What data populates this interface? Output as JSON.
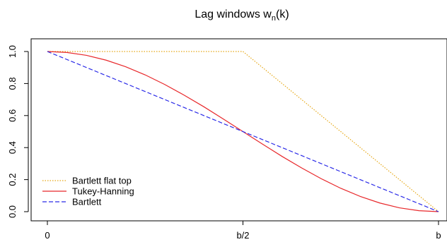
{
  "chart_data": {
    "type": "line",
    "title_main": "Lag windows w",
    "title_sub": "n",
    "title_paren": "(k)",
    "xlabel": "",
    "ylabel": "",
    "xlim": [
      0,
      1
    ],
    "ylim": [
      0,
      1
    ],
    "x_ticks": [
      {
        "value": 0,
        "label": "0"
      },
      {
        "value": 0.5,
        "label": "b/2"
      },
      {
        "value": 1,
        "label": "b"
      }
    ],
    "y_ticks": [
      {
        "value": 0.0,
        "label": "0.0"
      },
      {
        "value": 0.2,
        "label": "0.2"
      },
      {
        "value": 0.4,
        "label": "0.4"
      },
      {
        "value": 0.6,
        "label": "0.6"
      },
      {
        "value": 0.8,
        "label": "0.8"
      },
      {
        "value": 1.0,
        "label": "1.0"
      }
    ],
    "grid": false,
    "legend_position": "bottom-left",
    "series": [
      {
        "name": "Bartlett flat top",
        "color": "#E6A817",
        "dash": "dotted",
        "x": [
          0,
          0.5,
          1
        ],
        "y": [
          1,
          1,
          0
        ]
      },
      {
        "name": "Tukey-Hanning",
        "color": "#E8282B",
        "dash": "solid",
        "x": [
          0,
          0.05,
          0.1,
          0.15,
          0.2,
          0.25,
          0.3,
          0.35,
          0.4,
          0.45,
          0.5,
          0.55,
          0.6,
          0.65,
          0.7,
          0.75,
          0.8,
          0.85,
          0.9,
          0.95,
          1
        ],
        "y": [
          1,
          0.994,
          0.976,
          0.946,
          0.905,
          0.854,
          0.794,
          0.727,
          0.655,
          0.578,
          0.5,
          0.422,
          0.345,
          0.273,
          0.206,
          0.146,
          0.095,
          0.054,
          0.024,
          0.006,
          0
        ]
      },
      {
        "name": "Bartlett",
        "color": "#2B2BE8",
        "dash": "dashed",
        "x": [
          0,
          1
        ],
        "y": [
          1,
          0
        ]
      }
    ]
  }
}
